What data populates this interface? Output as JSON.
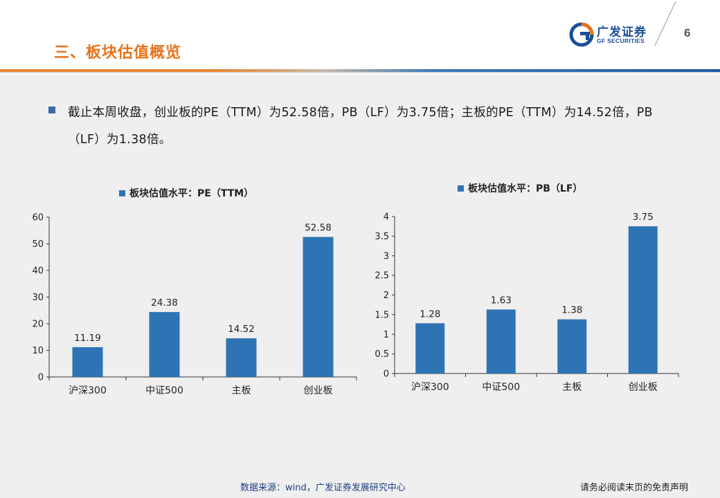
{
  "header": {
    "slide_title": "三、板块估值概览",
    "logo_cn": "广发证券",
    "logo_en": "GF SECURITIES",
    "page_number": "6"
  },
  "bullet": {
    "text": "截止本周收盘，创业板的PE（TTM）为52.58倍，PB（LF）为3.75倍；主板的PE（TTM）为14.52倍，PB（LF）为1.38倍。"
  },
  "colors": {
    "bar": "#2e74b5",
    "title_orange": "#e8731a",
    "brand_blue": "#1a4f95"
  },
  "chart_data": [
    {
      "type": "bar",
      "title": "板块估值水平：PE（TTM）",
      "legend": "板块估值水平：PE（TTM）",
      "categories": [
        "沪深300",
        "中证500",
        "主板",
        "创业板"
      ],
      "values": [
        11.19,
        24.38,
        14.52,
        52.58
      ],
      "value_labels": [
        "11.19",
        "24.38",
        "14.52",
        "52.58"
      ],
      "ylim": [
        0,
        60
      ],
      "yticks": [
        0,
        10,
        20,
        30,
        40,
        50,
        60
      ],
      "ytick_labels": [
        "0",
        "10",
        "20",
        "30",
        "40",
        "50",
        "60"
      ],
      "xlabel": "",
      "ylabel": "",
      "grid": false
    },
    {
      "type": "bar",
      "title": "板块估值水平：PB（LF）",
      "legend": "板块估值水平：PB（LF）",
      "categories": [
        "沪深300",
        "中证500",
        "主板",
        "创业板"
      ],
      "values": [
        1.28,
        1.63,
        1.38,
        3.75
      ],
      "value_labels": [
        "1.28",
        "1.63",
        "1.38",
        "3.75"
      ],
      "ylim": [
        0,
        4
      ],
      "yticks": [
        0,
        0.5,
        1,
        1.5,
        2,
        2.5,
        3,
        3.5,
        4
      ],
      "ytick_labels": [
        "0",
        "0.5",
        "1",
        "1.5",
        "2",
        "2.5",
        "3",
        "3.5",
        "4"
      ],
      "xlabel": "",
      "ylabel": "",
      "grid": false
    }
  ],
  "footer": {
    "source": "数据来源：wind，广发证券发展研究中心",
    "disclaimer": "请务必阅读末页的免责声明"
  }
}
